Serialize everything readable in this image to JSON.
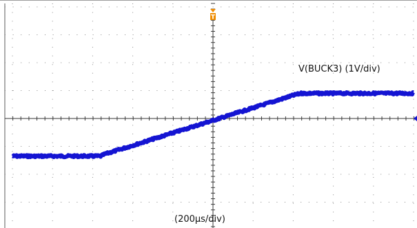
{
  "chart_data": {
    "type": "line",
    "x_divisions": 10,
    "y_divisions": 8,
    "x_range_div": [
      -5,
      5
    ],
    "y_range_div": [
      -2,
      4
    ],
    "grid": true,
    "series": [
      {
        "name": "V(BUCK3) (1V/div)",
        "color": "#1414d2",
        "x_div": [
          -5.0,
          -2.8,
          -2.7,
          2.05,
          2.2,
          5.0
        ],
        "y_div": [
          -1.35,
          -1.35,
          -1.28,
          0.85,
          0.9,
          0.9
        ]
      }
    ],
    "trace_label": "V(BUCK3) (1V/div)",
    "timebase_label": "(200μs/div)",
    "trigger_marker": "T",
    "trigger_color": "#f08c00",
    "ground_marker_color": "#1414d2"
  }
}
